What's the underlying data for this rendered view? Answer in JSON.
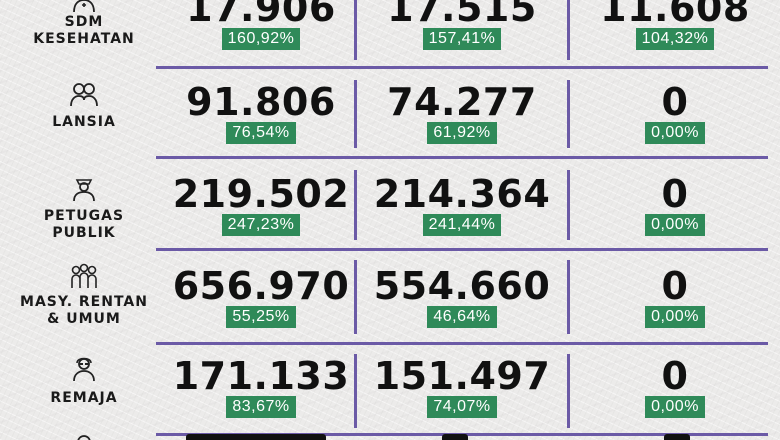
{
  "colors": {
    "divider": "#6b5aa6",
    "badge": "#2f8a59",
    "text": "#111111"
  },
  "rows": [
    {
      "icon": "medical-staff-icon",
      "label": "SDM\nKESEHATAN",
      "values": [
        "17.906",
        "17.515",
        "11.608"
      ],
      "percents": [
        "160,92%",
        "157,41%",
        "104,32%"
      ]
    },
    {
      "icon": "elderly-couple-icon",
      "label": "LANSIA",
      "values": [
        "91.806",
        "74.277",
        "0"
      ],
      "percents": [
        "76,54%",
        "61,92%",
        "0,00%"
      ]
    },
    {
      "icon": "public-officer-icon",
      "label": "PETUGAS\nPUBLIK",
      "values": [
        "219.502",
        "214.364",
        "0"
      ],
      "percents": [
        "247,23%",
        "241,44%",
        "0,00%"
      ]
    },
    {
      "icon": "community-group-icon",
      "label": "MASY. RENTAN\n& UMUM",
      "values": [
        "656.970",
        "554.660",
        "0"
      ],
      "percents": [
        "55,25%",
        "46,64%",
        "0,00%"
      ]
    },
    {
      "icon": "teenager-icon",
      "label": "REMAJA",
      "values": [
        "171.133",
        "151.497",
        "0"
      ],
      "percents": [
        "83,67%",
        "74,07%",
        "0,00%"
      ]
    },
    {
      "icon": "next-category-icon",
      "label": "",
      "values": [
        "",
        "",
        ""
      ],
      "percents": [
        "",
        "",
        ""
      ]
    }
  ]
}
